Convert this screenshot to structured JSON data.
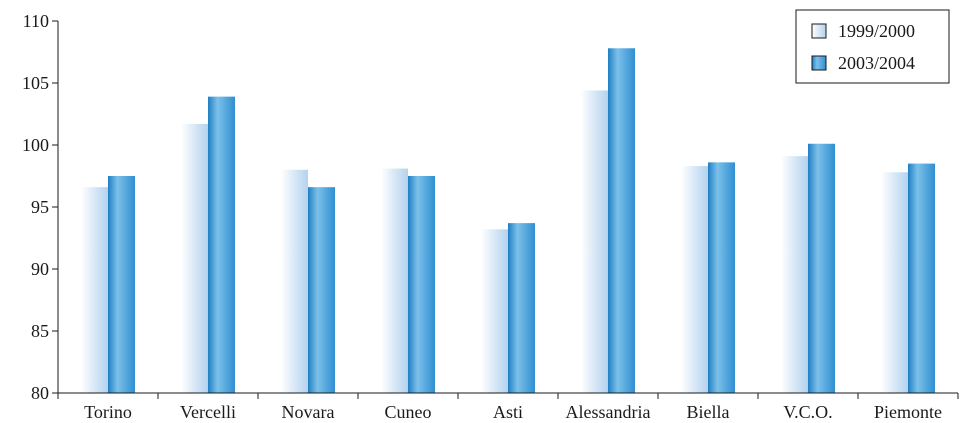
{
  "chart_data": {
    "type": "bar",
    "categories": [
      "Torino",
      "Vercelli",
      "Novara",
      "Cuneo",
      "Asti",
      "Alessandria",
      "Biella",
      "V.C.O.",
      "Piemonte"
    ],
    "series": [
      {
        "name": "1999/2000",
        "values": [
          96.6,
          101.7,
          98.0,
          98.1,
          93.2,
          104.4,
          98.3,
          99.1,
          97.8
        ]
      },
      {
        "name": "2003/2004",
        "values": [
          97.5,
          103.9,
          96.6,
          97.5,
          93.7,
          107.8,
          98.6,
          100.1,
          98.5
        ]
      }
    ],
    "ylim": [
      80,
      110
    ],
    "yticks": [
      80,
      85,
      90,
      95,
      100,
      105,
      110
    ],
    "ytick_labels": [
      "80",
      "85",
      "90",
      "95",
      "100",
      "105",
      "110"
    ],
    "grid": false,
    "legend_position": "top-right",
    "colors": {
      "series_1": "#c4ddf3",
      "series_2": "#2e8fd0",
      "axis": "#1a1a1a"
    }
  }
}
